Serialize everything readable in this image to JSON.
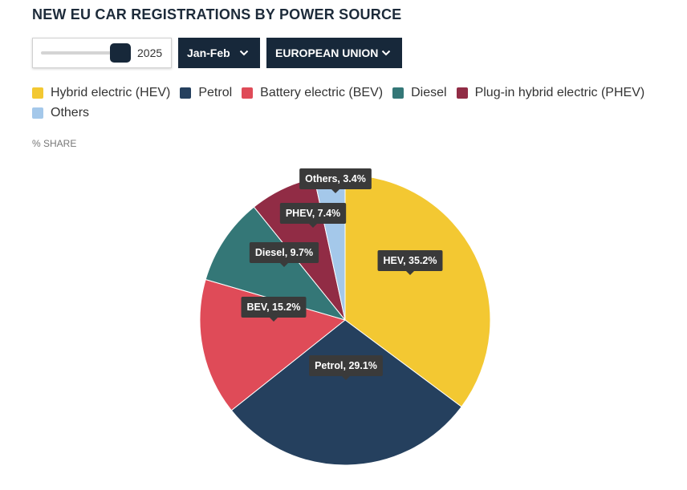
{
  "header": {
    "title": "NEW EU CAR REGISTRATIONS BY POWER SOURCE"
  },
  "controls": {
    "year_slider": {
      "value": "2025",
      "level": 1.0
    },
    "period_dropdown": {
      "label": "Jan-Feb"
    },
    "region_dropdown": {
      "label": "EUROPEAN UNION"
    }
  },
  "axis_note": "% SHARE",
  "colors": {
    "hev": "#f3c832",
    "petrol": "#25405e",
    "bev": "#df4b58",
    "diesel": "#347777",
    "phev": "#912c45",
    "others": "#a4c8ea",
    "control_dark": "#17283a",
    "tooltip": "#3a3a3a"
  },
  "chart_data": {
    "type": "pie",
    "slices": [
      {
        "key": "hev",
        "legend": "Hybrid electric (HEV)",
        "label": "HEV, 35.2%",
        "value": 35.2,
        "color": "#f3c832"
      },
      {
        "key": "petrol",
        "legend": "Petrol",
        "label": "Petrol, 29.1%",
        "value": 29.1,
        "color": "#25405e"
      },
      {
        "key": "bev",
        "legend": "Battery electric (BEV)",
        "label": "BEV, 15.2%",
        "value": 15.2,
        "color": "#df4b58"
      },
      {
        "key": "diesel",
        "legend": "Diesel",
        "label": "Diesel, 9.7%",
        "value": 9.7,
        "color": "#347777"
      },
      {
        "key": "phev",
        "legend": "Plug-in hybrid electric (PHEV)",
        "label": "PHEV, 7.4%",
        "value": 7.4,
        "color": "#912c45"
      },
      {
        "key": "others",
        "legend": "Others",
        "label": "Others, 3.4%",
        "value": 3.4,
        "color": "#a4c8ea"
      }
    ]
  }
}
